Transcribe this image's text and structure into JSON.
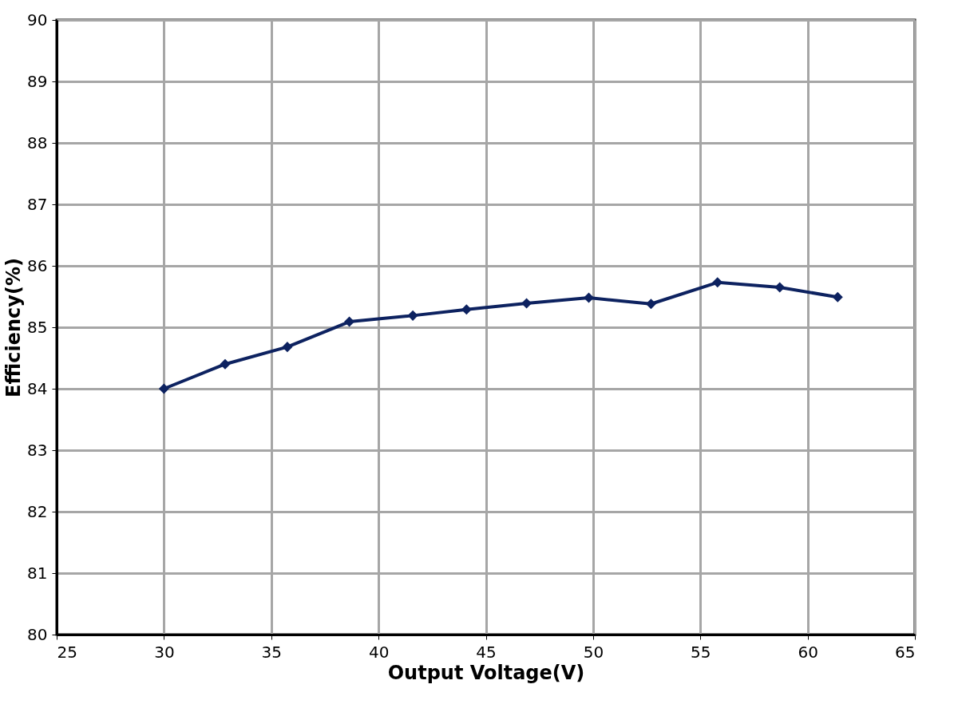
{
  "chart_data": {
    "type": "line",
    "xlabel": "Output Voltage(V)",
    "ylabel": "Efficiency(%)",
    "xlim": [
      25,
      65
    ],
    "xticks": [
      25,
      30,
      35,
      40,
      45,
      50,
      55,
      60,
      65
    ],
    "ylim": [
      80,
      90
    ],
    "yticks": [
      80,
      81,
      82,
      83,
      84,
      85,
      86,
      87,
      88,
      89,
      90
    ],
    "grid": true,
    "marker": "diamond",
    "line_style": "solid",
    "series": [
      {
        "color": "#0d2260",
        "x": [
          30,
          32.85,
          35.75,
          38.64,
          41.6,
          44.1,
          46.9,
          49.8,
          52.7,
          55.8,
          58.7,
          61.4
        ],
        "values": [
          84.0,
          84.4,
          84.68,
          85.09,
          85.19,
          85.29,
          85.39,
          85.48,
          85.38,
          85.73,
          85.65,
          85.49
        ]
      }
    ]
  }
}
